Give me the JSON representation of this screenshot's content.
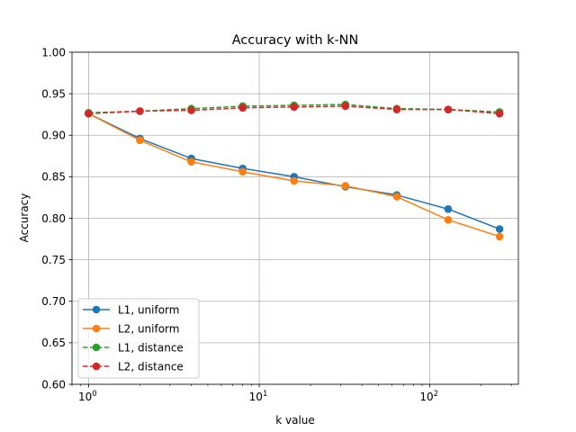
{
  "chart_data": {
    "type": "line",
    "title": "Accuracy with k-NN",
    "xlabel": "k value",
    "ylabel": "Accuracy",
    "xscale": "log",
    "xlim": [
      0.8,
      330
    ],
    "ylim": [
      0.6,
      1.0
    ],
    "yticks": [
      0.6,
      0.65,
      0.7,
      0.75,
      0.8,
      0.85,
      0.9,
      0.95,
      1.0
    ],
    "ytick_labels": [
      "0.60",
      "0.65",
      "0.70",
      "0.75",
      "0.80",
      "0.85",
      "0.90",
      "0.95",
      "1.00"
    ],
    "xticks": [
      1,
      10,
      100
    ],
    "xtick_labels": [
      {
        "base": "10",
        "exp": "0"
      },
      {
        "base": "10",
        "exp": "1"
      },
      {
        "base": "10",
        "exp": "2"
      }
    ],
    "grid": true,
    "legend_position": "lower-left",
    "x": [
      1,
      2,
      4,
      8,
      16,
      32,
      64,
      128,
      256
    ],
    "series": [
      {
        "name": "L1, uniform",
        "color": "#1f77b4",
        "linestyle": "solid",
        "marker": "circle",
        "values": [
          0.926,
          0.896,
          0.872,
          0.86,
          0.85,
          0.838,
          0.828,
          0.811,
          0.787
        ]
      },
      {
        "name": "L2, uniform",
        "color": "#ff7f0e",
        "linestyle": "solid",
        "marker": "circle",
        "values": [
          0.926,
          0.894,
          0.868,
          0.856,
          0.845,
          0.839,
          0.826,
          0.798,
          0.778
        ]
      },
      {
        "name": "L1, distance",
        "color": "#2ca02c",
        "linestyle": "dashed",
        "marker": "circle",
        "values": [
          0.927,
          0.929,
          0.932,
          0.935,
          0.936,
          0.937,
          0.932,
          0.931,
          0.928
        ]
      },
      {
        "name": "L2, distance",
        "color": "#d62728",
        "linestyle": "dashed",
        "marker": "circle",
        "values": [
          0.926,
          0.929,
          0.93,
          0.933,
          0.934,
          0.935,
          0.931,
          0.931,
          0.926
        ]
      }
    ]
  }
}
